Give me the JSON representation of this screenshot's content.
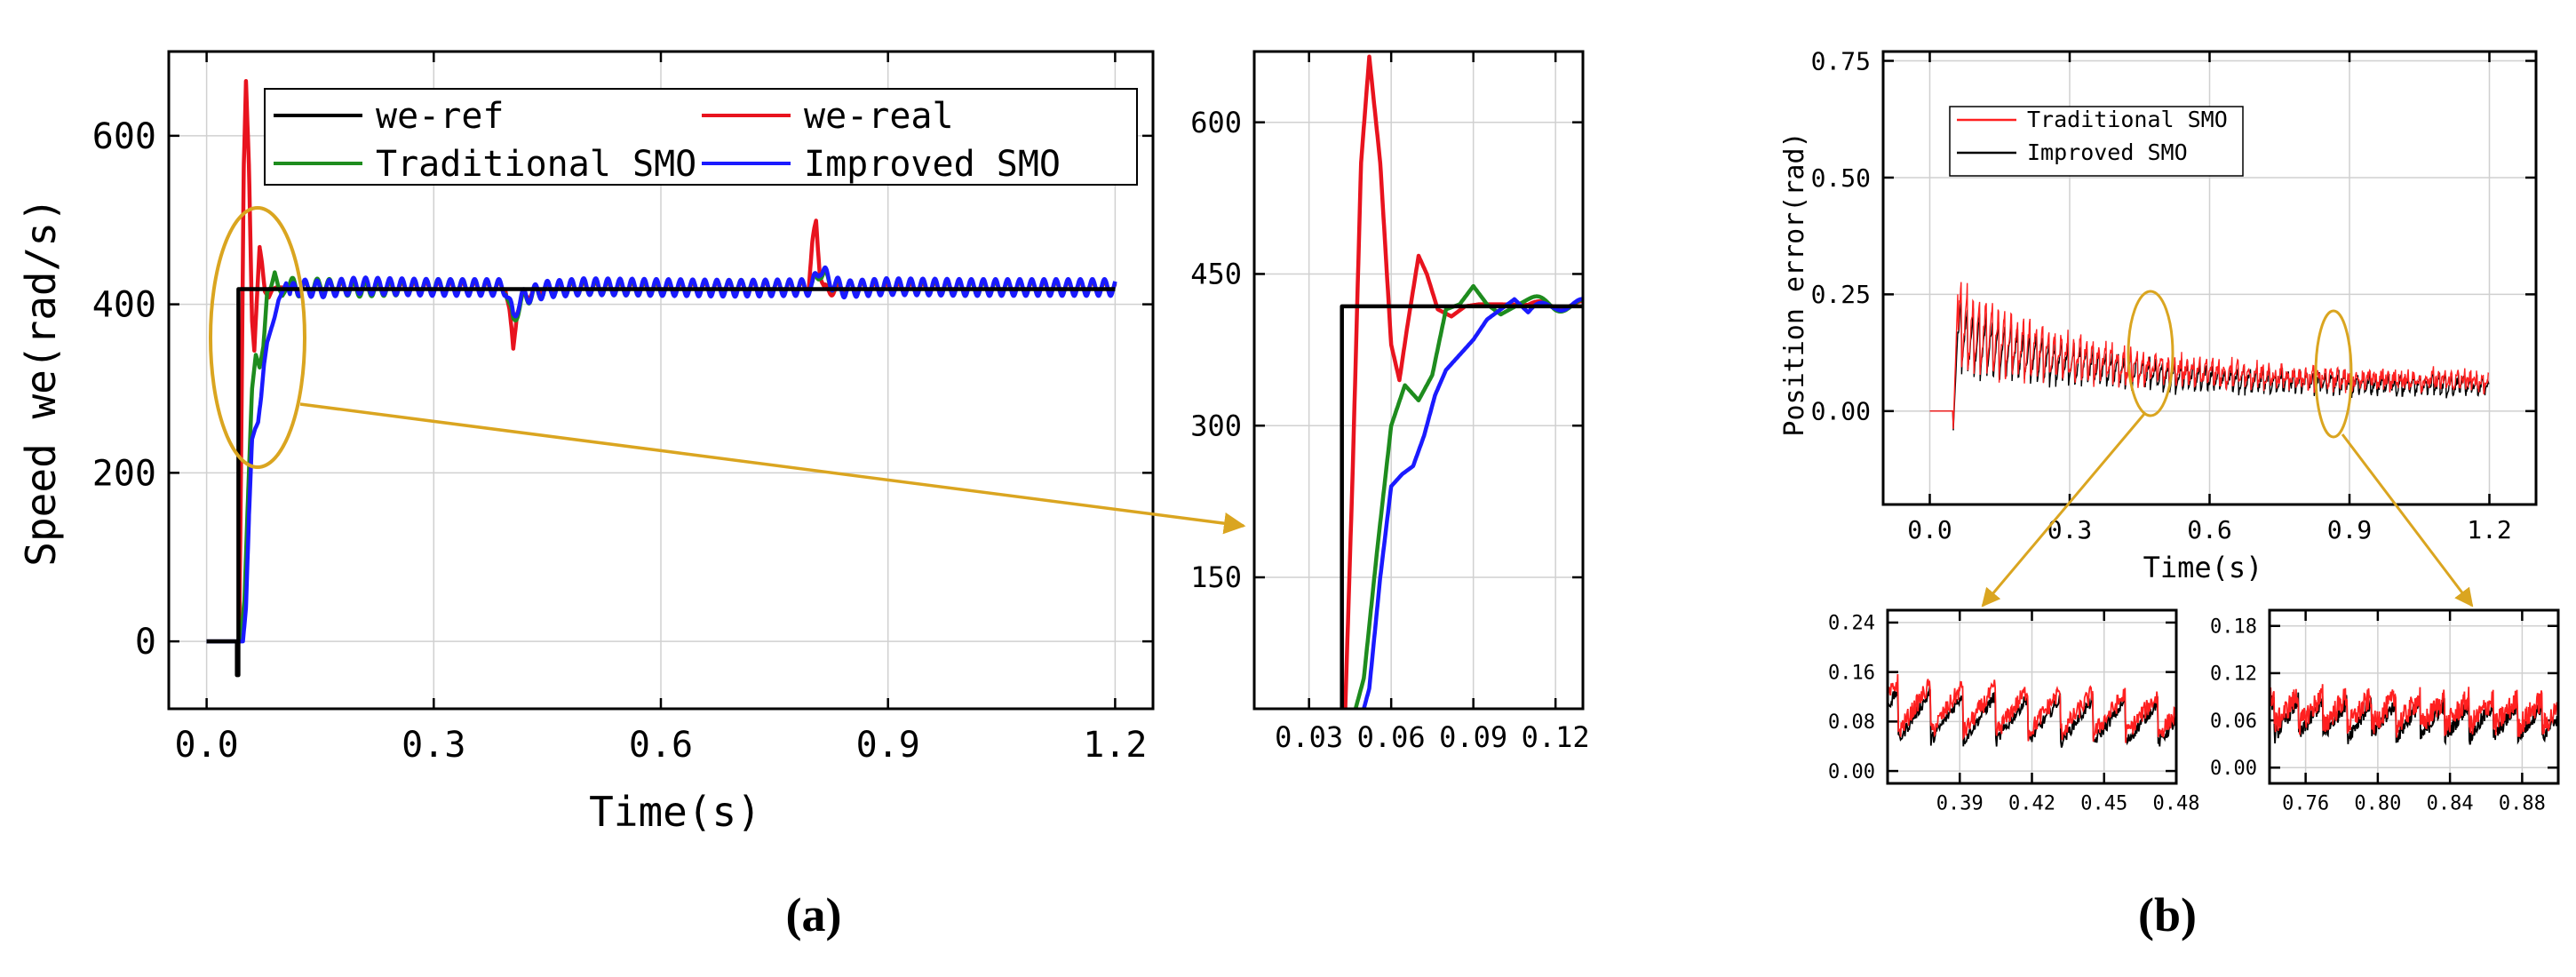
{
  "figure": {
    "panel_a_label": "(a)",
    "panel_b_label": "(b)",
    "zoom_color": "#DAA520"
  },
  "chart_data": [
    {
      "id": "a-main",
      "type": "line",
      "xlabel": "Time(s)",
      "ylabel": "Speed we(rad/s)",
      "xlim": [
        -0.05,
        1.25
      ],
      "ylim": [
        -80,
        700
      ],
      "xticks": [
        0.0,
        0.3,
        0.6,
        0.9,
        1.2
      ],
      "xtick_labels": [
        "0.0",
        "0.3",
        "0.6",
        "0.9",
        "1.2"
      ],
      "yticks": [
        0,
        200,
        400,
        600
      ],
      "ytick_labels": [
        "0",
        "200",
        "400",
        "600"
      ],
      "grid": true,
      "legend_position": "top",
      "series": [
        {
          "name": "we-ref",
          "color": "#000000",
          "x": [
            0,
            0.04,
            0.04,
            0.042,
            0.042,
            1.2
          ],
          "y": [
            0,
            0,
            -40,
            -40,
            418,
            418
          ]
        },
        {
          "name": "we-real",
          "color": "#e8131e",
          "x": [
            0,
            0.043,
            0.046,
            0.049,
            0.052,
            0.056,
            0.06,
            0.063,
            0.066,
            0.07,
            0.073,
            0.077,
            0.082,
            0.087,
            0.092,
            0.1,
            0.12,
            0.15,
            0.2,
            0.3,
            0.395,
            0.4,
            0.405,
            0.41,
            0.42,
            0.44,
            0.5,
            0.6,
            0.7,
            0.795,
            0.8,
            0.805,
            0.81,
            0.815,
            0.82,
            0.84,
            0.9,
            1.0,
            1.2
          ],
          "y": [
            0,
            0,
            260,
            560,
            665,
            560,
            380,
            345,
            400,
            468,
            450,
            415,
            408,
            418,
            420,
            420,
            419,
            421,
            419,
            420,
            420,
            390,
            345,
            395,
            410,
            418,
            420,
            419,
            420,
            420,
            470,
            497,
            440,
            420,
            415,
            420,
            419,
            420,
            420
          ]
        },
        {
          "name": "Traditional SMO",
          "color": "#1e8c1e",
          "x": [
            0,
            0.045,
            0.05,
            0.055,
            0.06,
            0.065,
            0.07,
            0.075,
            0.08,
            0.085,
            0.09,
            0.095,
            0.1,
            0.11,
            0.12,
            0.15,
            0.2,
            0.3,
            0.395,
            0.4,
            0.405,
            0.41,
            0.42,
            0.45,
            0.5,
            0.6,
            0.7,
            0.8,
            0.81,
            0.82,
            0.84,
            0.9,
            1.0,
            1.2
          ],
          "y": [
            0,
            0,
            50,
            180,
            300,
            340,
            325,
            350,
            415,
            420,
            438,
            420,
            410,
            425,
            418,
            422,
            418,
            421,
            420,
            395,
            380,
            392,
            408,
            418,
            420,
            419,
            420,
            420,
            440,
            428,
            418,
            421,
            419,
            420
          ]
        },
        {
          "name": "Improved SMO",
          "color": "#1a1aff",
          "x": [
            0,
            0.048,
            0.052,
            0.056,
            0.06,
            0.064,
            0.068,
            0.072,
            0.076,
            0.08,
            0.085,
            0.09,
            0.095,
            0.1,
            0.105,
            0.11,
            0.12,
            0.15,
            0.2,
            0.3,
            0.395,
            0.4,
            0.405,
            0.41,
            0.42,
            0.45,
            0.5,
            0.6,
            0.7,
            0.8,
            0.81,
            0.82,
            0.84,
            0.9,
            1.0,
            1.2
          ],
          "y": [
            0,
            0,
            40,
            150,
            240,
            252,
            260,
            290,
            330,
            355,
            370,
            385,
            405,
            415,
            425,
            412,
            420,
            418,
            422,
            420,
            420,
            400,
            385,
            398,
            410,
            418,
            421,
            420,
            419,
            420,
            445,
            430,
            418,
            421,
            420,
            420
          ]
        }
      ],
      "ripple_amplitudes": {
        "we-real": 6,
        "Traditional SMO": 9,
        "Improved SMO": 10
      }
    },
    {
      "id": "a-zoom",
      "type": "line",
      "xlim": [
        0.01,
        0.13
      ],
      "ylim": [
        20,
        670
      ],
      "xticks": [
        0.03,
        0.06,
        0.09,
        0.12
      ],
      "xtick_labels": [
        "0.03",
        "0.06",
        "0.09",
        "0.12"
      ],
      "yticks": [
        150,
        300,
        450,
        600
      ],
      "ytick_labels": [
        "150",
        "300",
        "450",
        "600"
      ],
      "grid": true
    },
    {
      "id": "b-main",
      "type": "line",
      "xlabel": "Time(s)",
      "ylabel": "Position error(rad)",
      "xlim": [
        -0.1,
        1.3
      ],
      "ylim": [
        -0.2,
        0.77
      ],
      "xticks": [
        0.0,
        0.3,
        0.6,
        0.9,
        1.2
      ],
      "xtick_labels": [
        "0.0",
        "0.3",
        "0.6",
        "0.9",
        "1.2"
      ],
      "yticks": [
        0.0,
        0.25,
        0.5,
        0.75
      ],
      "ytick_labels": [
        "0.00",
        "0.25",
        "0.50",
        "0.75"
      ],
      "grid": true,
      "legend_position": "top-left",
      "series": [
        {
          "name": "Traditional SMO",
          "color": "#ff2020"
        },
        {
          "name": "Improved SMO",
          "color": "#000000"
        }
      ]
    },
    {
      "id": "b-zoom1",
      "type": "line",
      "xlim": [
        0.36,
        0.48
      ],
      "ylim": [
        -0.02,
        0.26
      ],
      "xticks": [
        0.39,
        0.42,
        0.45,
        0.48
      ],
      "xtick_labels": [
        "0.39",
        "0.42",
        "0.45",
        "0.48"
      ],
      "yticks": [
        0.0,
        0.08,
        0.16,
        0.24
      ],
      "ytick_labels": [
        "0.00",
        "0.08",
        "0.16",
        "0.24"
      ],
      "grid": true
    },
    {
      "id": "b-zoom2",
      "type": "line",
      "xlim": [
        0.74,
        0.9
      ],
      "ylim": [
        -0.02,
        0.2
      ],
      "xticks": [
        0.76,
        0.8,
        0.84,
        0.88
      ],
      "xtick_labels": [
        "0.76",
        "0.80",
        "0.84",
        "0.88"
      ],
      "yticks": [
        0.0,
        0.06,
        0.12,
        0.18
      ],
      "ytick_labels": [
        "0.00",
        "0.06",
        "0.12",
        "0.18"
      ],
      "grid": true
    }
  ]
}
